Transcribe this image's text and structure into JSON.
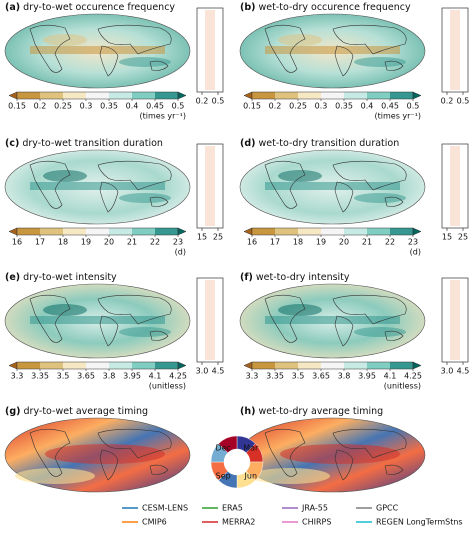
{
  "panels": [
    {
      "label": "(a)",
      "title": "dry-to-wet occurence frequency",
      "colorbar_ticks": [
        0.15,
        0.2,
        0.25,
        0.3,
        0.35,
        0.4,
        0.45,
        0.5
      ],
      "unit": "(times yr⁻¹)",
      "profile_ticks": [
        0.2,
        0.5
      ]
    },
    {
      "label": "(b)",
      "title": "wet-to-dry occurence frequency",
      "colorbar_ticks": [
        0.15,
        0.2,
        0.25,
        0.3,
        0.35,
        0.4,
        0.45,
        0.5
      ],
      "unit": "(times yr⁻¹)",
      "profile_ticks": [
        0.2,
        0.5
      ]
    },
    {
      "label": "(c)",
      "title": "dry-to-wet transition duration",
      "colorbar_ticks": [
        16,
        17,
        18,
        19,
        20,
        21,
        22,
        23
      ],
      "unit": "(d)",
      "profile_ticks": [
        15,
        25
      ]
    },
    {
      "label": "(d)",
      "title": "wet-to-dry transition duration",
      "colorbar_ticks": [
        16,
        17,
        18,
        19,
        20,
        21,
        22,
        23
      ],
      "unit": "(d)",
      "profile_ticks": [
        15,
        25
      ]
    },
    {
      "label": "(e)",
      "title": "dry-to-wet intensity",
      "colorbar_ticks": [
        3.3,
        3.35,
        3.5,
        3.65,
        3.8,
        3.95,
        4.1,
        4.25
      ],
      "unit": "(unitless)",
      "profile_ticks": [
        {
          "value": 3,
          "label": "3.0"
        },
        4.5
      ]
    },
    {
      "label": "(f)",
      "title": "wet-to-dry intensity",
      "colorbar_ticks": [
        3.3,
        3.35,
        3.5,
        3.65,
        3.8,
        3.95,
        4.1,
        4.25
      ],
      "unit": "(unitless)",
      "profile_ticks": [
        {
          "value": 3,
          "label": "3.0"
        },
        4.5
      ]
    },
    {
      "label": "(g)",
      "title": "dry-to-wet average timing"
    },
    {
      "label": "(h)",
      "title": "wet-to-dry average timing"
    }
  ],
  "month_wheel": [
    "Dec",
    "Mar",
    "Jun",
    "Sep"
  ],
  "legend": [
    {
      "name": "CESM-LENS",
      "color": "#1f77b4"
    },
    {
      "name": "CMIP6",
      "color": "#ff7f0e"
    },
    {
      "name": "ERA5",
      "color": "#2ca02c"
    },
    {
      "name": "MERRA2",
      "color": "#d62728"
    },
    {
      "name": "JRA-55",
      "color": "#9467bd"
    },
    {
      "name": "CHIRPS",
      "color": "#e377c2"
    },
    {
      "name": "GPCC",
      "color": "#7f7f7f"
    },
    {
      "name": "REGEN LongTermStns",
      "color": "#17becf"
    }
  ]
}
